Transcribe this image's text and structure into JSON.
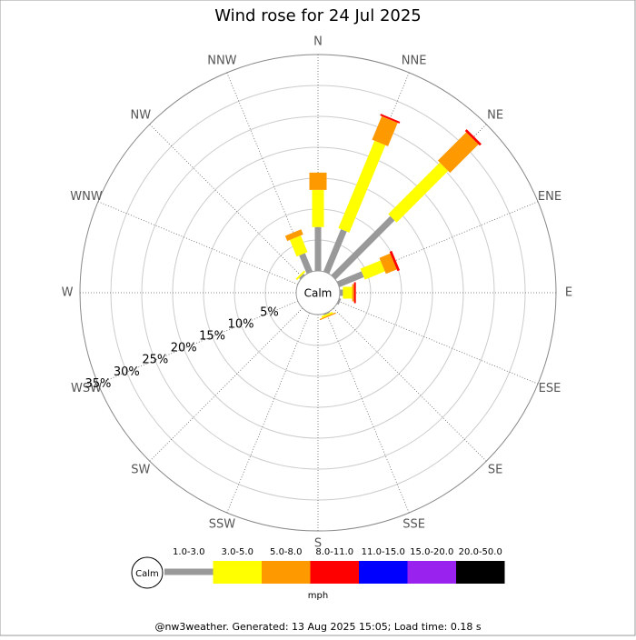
{
  "chart_data": {
    "type": "wind_rose",
    "title": "Wind rose for 24 Jul 2025",
    "directions": [
      "N",
      "NNE",
      "NE",
      "ENE",
      "E",
      "ESE",
      "SE",
      "SSE",
      "S",
      "SSW",
      "SW",
      "WSW",
      "W",
      "WNW",
      "NW",
      "NNW"
    ],
    "series": [
      {
        "name": "1.0-3.0",
        "color": "#999999",
        "values": [
          7.1,
          7.4,
          13.5,
          4.3,
          0.5,
          0.3,
          0,
          0.2,
          0,
          0,
          0,
          0,
          0,
          0,
          0.3,
          3.2
        ]
      },
      {
        "name": "3.0-5.0",
        "color": "#ffff00",
        "values": [
          6.0,
          15.3,
          11.8,
          3.5,
          1.5,
          0,
          0,
          0.3,
          0,
          0,
          0,
          0,
          0,
          0,
          0.3,
          2.9
        ]
      },
      {
        "name": "5.0-8.0",
        "color": "#ff9900",
        "values": [
          2.8,
          4.1,
          6.5,
          1.9,
          0.3,
          0,
          0,
          0.2,
          0,
          0,
          0,
          0,
          0,
          0,
          0,
          0.9
        ]
      },
      {
        "name": "8.0-11.0",
        "color": "#ff0000",
        "values": [
          0,
          0.3,
          0.4,
          0.4,
          0.3,
          0,
          0,
          0,
          0,
          0,
          0,
          0,
          0,
          0,
          0,
          0
        ]
      },
      {
        "name": "11.0-15.0",
        "color": "#0000ff",
        "values": [
          0,
          0,
          0,
          0,
          0,
          0,
          0,
          0,
          0,
          0,
          0,
          0,
          0,
          0,
          0,
          0
        ]
      },
      {
        "name": "15.0-20.0",
        "color": "#9922ee",
        "values": [
          0,
          0,
          0,
          0,
          0,
          0,
          0,
          0,
          0,
          0,
          0,
          0,
          0,
          0,
          0,
          0
        ]
      },
      {
        "name": "20.0-50.0",
        "color": "#000000",
        "values": [
          0,
          0,
          0,
          0,
          0,
          0,
          0,
          0,
          0,
          0,
          0,
          0,
          0,
          0,
          0,
          0
        ]
      }
    ],
    "rlim": [
      0,
      35
    ],
    "rticks": [
      {
        "value": 5,
        "label": "5%"
      },
      {
        "value": 10,
        "label": "10%"
      },
      {
        "value": 15,
        "label": "15%"
      },
      {
        "value": 20,
        "label": "20%"
      },
      {
        "value": 25,
        "label": "25%"
      },
      {
        "value": 30,
        "label": "30%"
      },
      {
        "value": 35,
        "label": "35%"
      }
    ],
    "calm_label": "Calm",
    "unit_label": "mph",
    "footer": "@nw3weather. Generated: 13 Aug 2025 15:05; Load time: 0.18 s"
  }
}
